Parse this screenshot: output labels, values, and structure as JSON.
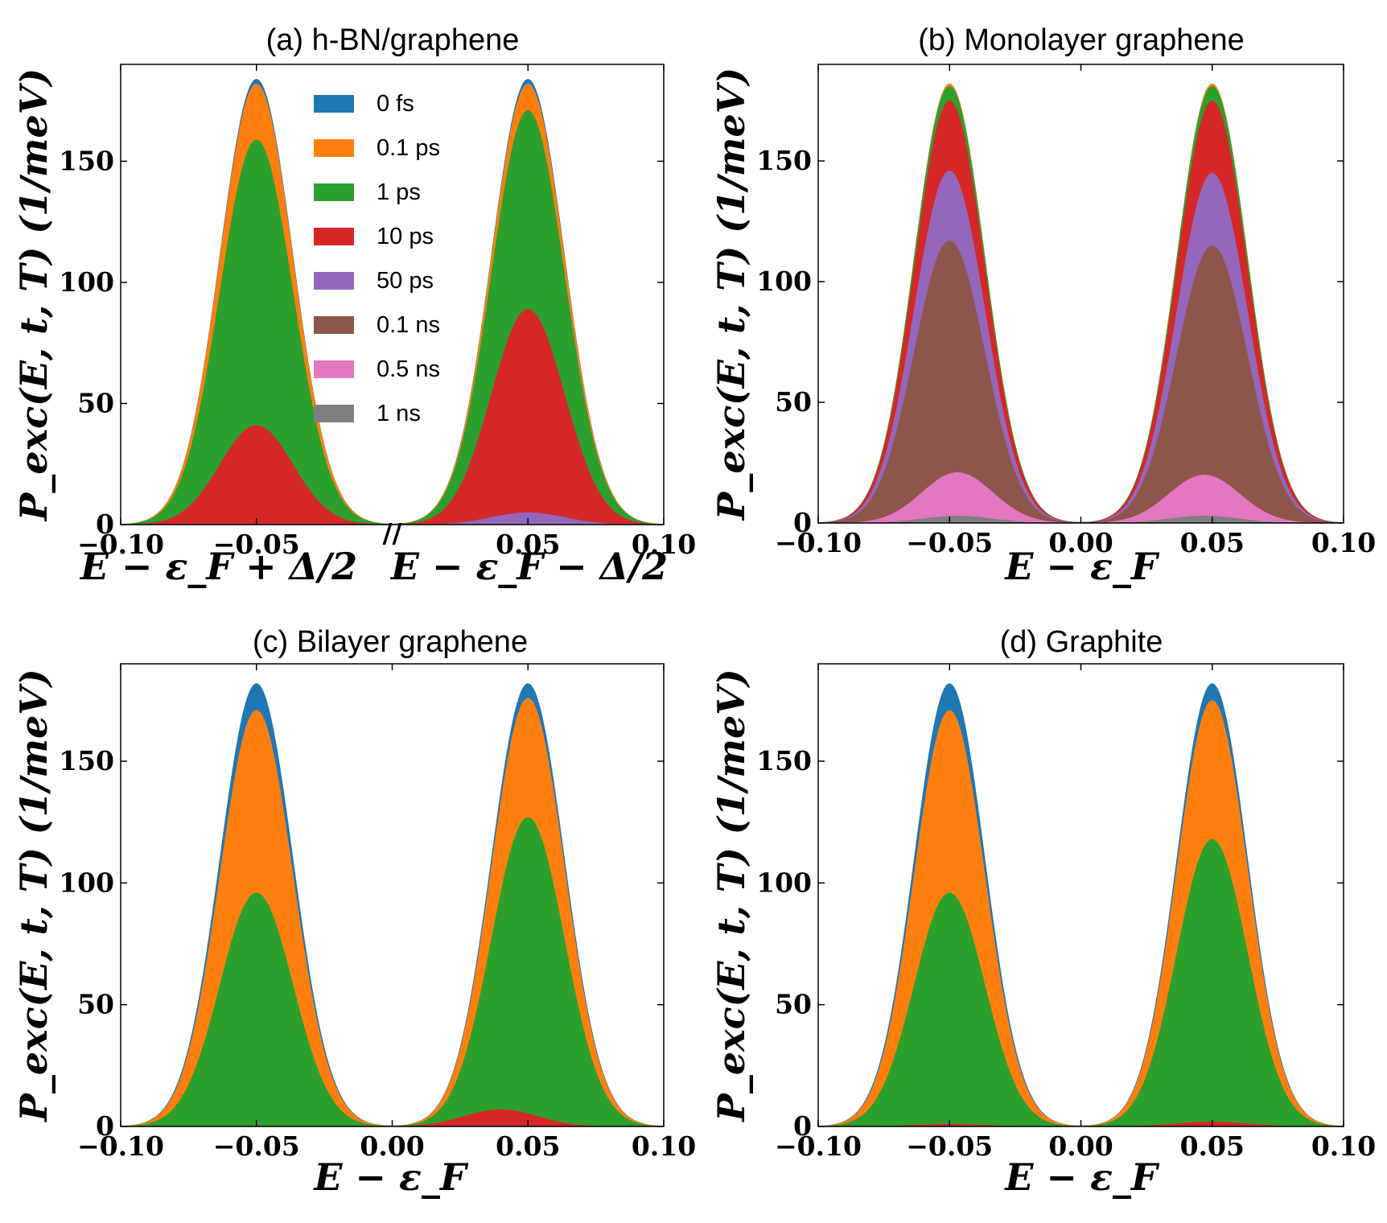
{
  "figure": {
    "legend": [
      {
        "label": "0 fs",
        "color": "#1f77b4"
      },
      {
        "label": "0.1 ps",
        "color": "#ff7f0e"
      },
      {
        "label": "1 ps",
        "color": "#2ca02c"
      },
      {
        "label": "10 ps",
        "color": "#d62728"
      },
      {
        "label": "50 ps",
        "color": "#9467bd"
      },
      {
        "label": "0.1 ns",
        "color": "#8c564b"
      },
      {
        "label": "0.5 ns",
        "color": "#e377c2"
      },
      {
        "label": "1 ns",
        "color": "#7f7f7f"
      }
    ]
  },
  "chart_data": [
    {
      "type": "area",
      "title": "(a) h-BN/graphene",
      "ylabel": "P_exc(E, t, T) (1/meV)",
      "xlabel_left": "E − ε_F + Δ/2",
      "xlabel_right": "E − ε_F − Δ/2",
      "axis_break": "//",
      "xlim": [
        -0.1,
        0.1
      ],
      "ylim": [
        0,
        190
      ],
      "xticks": [
        -0.1,
        -0.05,
        0.05,
        0.1
      ],
      "xtick_labels": [
        "−0.10",
        "−0.05",
        "0.05",
        "0.10"
      ],
      "yticks": [
        0,
        50,
        100,
        150
      ],
      "ytick_labels": [
        "0",
        "50",
        "100",
        "150"
      ],
      "peak_width_sigma": 0.0135,
      "series": [
        {
          "name": "0 fs",
          "peaks": [
            {
              "center": -0.05,
              "height": 184
            },
            {
              "center": 0.05,
              "height": 184
            }
          ]
        },
        {
          "name": "0.1 ps",
          "peaks": [
            {
              "center": -0.05,
              "height": 182
            },
            {
              "center": 0.05,
              "height": 182
            }
          ]
        },
        {
          "name": "1 ps",
          "peaks": [
            {
              "center": -0.05,
              "height": 159
            },
            {
              "center": 0.05,
              "height": 171
            }
          ]
        },
        {
          "name": "10 ps",
          "peaks": [
            {
              "center": -0.05,
              "height": 41
            },
            {
              "center": 0.05,
              "height": 89
            }
          ]
        },
        {
          "name": "50 ps",
          "peaks": [
            {
              "center": -0.05,
              "height": 0
            },
            {
              "center": 0.05,
              "height": 5
            }
          ]
        },
        {
          "name": "0.1 ns",
          "peaks": [
            {
              "center": -0.05,
              "height": 0
            },
            {
              "center": 0.05,
              "height": 0
            }
          ]
        },
        {
          "name": "0.5 ns",
          "peaks": [
            {
              "center": -0.05,
              "height": 0
            },
            {
              "center": 0.05,
              "height": 0
            }
          ]
        },
        {
          "name": "1 ns",
          "peaks": [
            {
              "center": -0.05,
              "height": 0
            },
            {
              "center": 0.05,
              "height": 0
            }
          ]
        }
      ]
    },
    {
      "type": "area",
      "title": "(b) Monolayer graphene",
      "ylabel": "P_exc(E, t, T) (1/meV)",
      "xlabel": "E − ε_F",
      "xlim": [
        -0.1,
        0.1
      ],
      "ylim": [
        0,
        190
      ],
      "xticks": [
        -0.1,
        -0.05,
        0.0,
        0.05,
        0.1
      ],
      "xtick_labels": [
        "−0.10",
        "−0.05",
        "0.00",
        "0.05",
        "0.10"
      ],
      "yticks": [
        0,
        50,
        100,
        150
      ],
      "ytick_labels": [
        "0",
        "50",
        "100",
        "150"
      ],
      "peak_width_sigma": 0.0135,
      "series": [
        {
          "name": "0 fs",
          "peaks": [
            {
              "center": -0.05,
              "height": 182
            },
            {
              "center": 0.05,
              "height": 182
            }
          ]
        },
        {
          "name": "0.1 ps",
          "peaks": [
            {
              "center": -0.05,
              "height": 182
            },
            {
              "center": 0.05,
              "height": 182
            }
          ]
        },
        {
          "name": "1 ps",
          "peaks": [
            {
              "center": -0.05,
              "height": 181
            },
            {
              "center": 0.05,
              "height": 181
            }
          ]
        },
        {
          "name": "10 ps",
          "peaks": [
            {
              "center": -0.05,
              "height": 175
            },
            {
              "center": 0.05,
              "height": 175
            }
          ]
        },
        {
          "name": "50 ps",
          "peaks": [
            {
              "center": -0.05,
              "height": 146
            },
            {
              "center": 0.05,
              "height": 145
            }
          ]
        },
        {
          "name": "0.1 ns",
          "peaks": [
            {
              "center": -0.05,
              "height": 117
            },
            {
              "center": 0.05,
              "height": 115
            }
          ]
        },
        {
          "name": "0.5 ns",
          "peaks": [
            {
              "center": -0.047,
              "height": 21
            },
            {
              "center": 0.047,
              "height": 20
            }
          ]
        },
        {
          "name": "1 ns",
          "peaks": [
            {
              "center": -0.047,
              "height": 3
            },
            {
              "center": 0.047,
              "height": 3
            }
          ]
        }
      ]
    },
    {
      "type": "area",
      "title": "(c) Bilayer graphene",
      "ylabel": "P_exc(E, t, T) (1/meV)",
      "xlabel": "E − ε_F",
      "xlim": [
        -0.1,
        0.1
      ],
      "ylim": [
        0,
        190
      ],
      "xticks": [
        -0.1,
        -0.05,
        0.0,
        0.05,
        0.1
      ],
      "xtick_labels": [
        "−0.10",
        "−0.05",
        "0.00",
        "0.05",
        "0.10"
      ],
      "yticks": [
        0,
        50,
        100,
        150
      ],
      "ytick_labels": [
        "0",
        "50",
        "100",
        "150"
      ],
      "peak_width_sigma": 0.0135,
      "series": [
        {
          "name": "0 fs",
          "peaks": [
            {
              "center": -0.05,
              "height": 182
            },
            {
              "center": 0.05,
              "height": 182
            }
          ]
        },
        {
          "name": "0.1 ps",
          "peaks": [
            {
              "center": -0.05,
              "height": 171
            },
            {
              "center": 0.05,
              "height": 176
            }
          ]
        },
        {
          "name": "1 ps",
          "peaks": [
            {
              "center": -0.05,
              "height": 96
            },
            {
              "center": 0.05,
              "height": 127
            }
          ]
        },
        {
          "name": "10 ps",
          "peaks": [
            {
              "center": -0.05,
              "height": 0
            },
            {
              "center": 0.04,
              "height": 7
            }
          ]
        },
        {
          "name": "50 ps",
          "peaks": [
            {
              "center": -0.05,
              "height": 0
            },
            {
              "center": 0.05,
              "height": 0
            }
          ]
        },
        {
          "name": "0.1 ns",
          "peaks": [
            {
              "center": -0.05,
              "height": 0
            },
            {
              "center": 0.05,
              "height": 0
            }
          ]
        },
        {
          "name": "0.5 ns",
          "peaks": [
            {
              "center": -0.05,
              "height": 0
            },
            {
              "center": 0.05,
              "height": 0
            }
          ]
        },
        {
          "name": "1 ns",
          "peaks": [
            {
              "center": -0.05,
              "height": 0
            },
            {
              "center": 0.05,
              "height": 0
            }
          ]
        }
      ]
    },
    {
      "type": "area",
      "title": "(d) Graphite",
      "ylabel": "P_exc(E, t, T) (1/meV)",
      "xlabel": "E − ε_F",
      "xlim": [
        -0.1,
        0.1
      ],
      "ylim": [
        0,
        190
      ],
      "xticks": [
        -0.1,
        -0.05,
        0.0,
        0.05,
        0.1
      ],
      "xtick_labels": [
        "−0.10",
        "−0.05",
        "0.00",
        "0.05",
        "0.10"
      ],
      "yticks": [
        0,
        50,
        100,
        150
      ],
      "ytick_labels": [
        "0",
        "50",
        "100",
        "150"
      ],
      "peak_width_sigma": 0.0135,
      "series": [
        {
          "name": "0 fs",
          "peaks": [
            {
              "center": -0.05,
              "height": 182
            },
            {
              "center": 0.05,
              "height": 182
            }
          ]
        },
        {
          "name": "0.1 ps",
          "peaks": [
            {
              "center": -0.05,
              "height": 171
            },
            {
              "center": 0.05,
              "height": 175
            }
          ]
        },
        {
          "name": "1 ps",
          "peaks": [
            {
              "center": -0.05,
              "height": 96
            },
            {
              "center": 0.05,
              "height": 118
            }
          ]
        },
        {
          "name": "10 ps",
          "peaks": [
            {
              "center": -0.05,
              "height": 1
            },
            {
              "center": 0.05,
              "height": 2
            }
          ]
        },
        {
          "name": "50 ps",
          "peaks": [
            {
              "center": -0.05,
              "height": 0
            },
            {
              "center": 0.05,
              "height": 0
            }
          ]
        },
        {
          "name": "0.1 ns",
          "peaks": [
            {
              "center": -0.05,
              "height": 0
            },
            {
              "center": 0.05,
              "height": 0
            }
          ]
        },
        {
          "name": "0.5 ns",
          "peaks": [
            {
              "center": -0.05,
              "height": 0
            },
            {
              "center": 0.05,
              "height": 0
            }
          ]
        },
        {
          "name": "1 ns",
          "peaks": [
            {
              "center": -0.05,
              "height": 0
            },
            {
              "center": 0.05,
              "height": 0
            }
          ]
        }
      ]
    }
  ]
}
